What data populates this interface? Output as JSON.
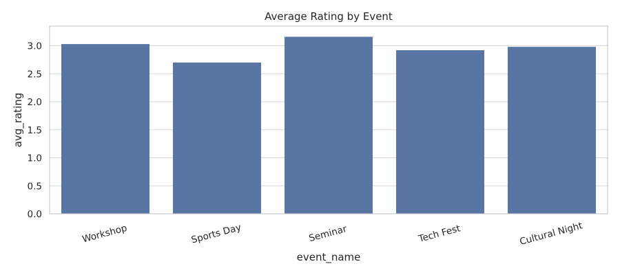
{
  "chart_data": {
    "type": "bar",
    "title": "Average Rating by Event",
    "xlabel": "event_name",
    "ylabel": "avg_rating",
    "categories": [
      "Workshop",
      "Sports Day",
      "Seminar",
      "Tech Fest",
      "Cultural Night"
    ],
    "values": [
      3.03,
      2.7,
      3.16,
      2.92,
      2.98
    ],
    "ylim": [
      0,
      3.35
    ],
    "yticks": [
      "0.0",
      "0.5",
      "1.0",
      "1.5",
      "2.0",
      "2.5",
      "3.0"
    ],
    "grid": true,
    "legend": false,
    "bar_color": "#5975a4"
  }
}
